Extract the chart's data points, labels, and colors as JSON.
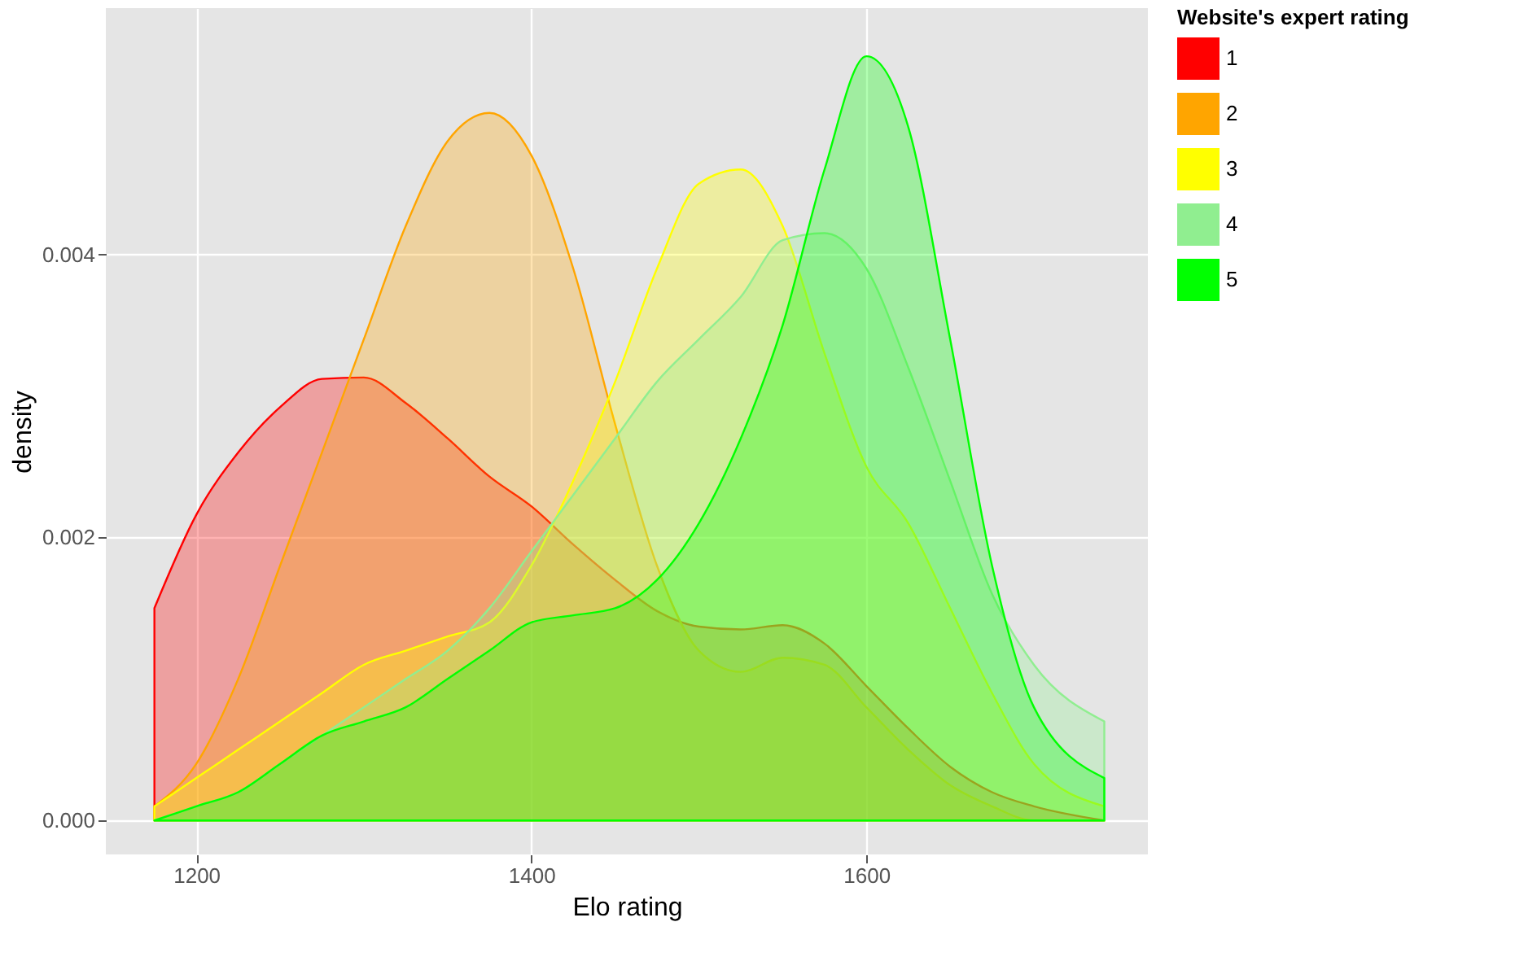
{
  "chart_data": {
    "type": "area",
    "xlabel": "Elo rating",
    "ylabel": "density",
    "legend_title": "Website's expert rating",
    "x": [
      1175,
      1200,
      1225,
      1250,
      1275,
      1300,
      1325,
      1350,
      1375,
      1400,
      1425,
      1450,
      1475,
      1500,
      1525,
      1550,
      1575,
      1600,
      1625,
      1650,
      1675,
      1700,
      1742
    ],
    "series": [
      {
        "name": "1",
        "color": "#ff0000",
        "values": [
          0.0015,
          0.00216,
          0.0026,
          0.00292,
          0.00312,
          0.00313,
          0.00295,
          0.0027,
          0.00243,
          0.00222,
          0.00195,
          0.0017,
          0.00148,
          0.00137,
          0.00135,
          0.00138,
          0.00125,
          0.00095,
          0.00065,
          0.00038,
          0.0002,
          0.0001,
          0.0
        ]
      },
      {
        "name": "2",
        "color": "#ffa500",
        "values": [
          0.0001,
          0.0004,
          0.001,
          0.0018,
          0.0026,
          0.0034,
          0.0042,
          0.0048,
          0.005,
          0.0047,
          0.0039,
          0.0028,
          0.0018,
          0.0012,
          0.00105,
          0.00115,
          0.0011,
          0.0008,
          0.0005,
          0.00025,
          0.0001,
          0.0,
          0.0
        ]
      },
      {
        "name": "3",
        "color": "#ffff00",
        "values": [
          0.0001,
          0.0003,
          0.0005,
          0.0007,
          0.0009,
          0.0011,
          0.0012,
          0.0013,
          0.0014,
          0.0018,
          0.0024,
          0.0031,
          0.0039,
          0.0045,
          0.0046,
          0.0042,
          0.0033,
          0.0025,
          0.0021,
          0.0015,
          0.0009,
          0.0004,
          0.0001
        ]
      },
      {
        "name": "4",
        "color": "#90ee90",
        "values": [
          0.0,
          0.0001,
          0.0002,
          0.0004,
          0.0006,
          0.0008,
          0.001,
          0.0012,
          0.0015,
          0.0019,
          0.0023,
          0.0027,
          0.0031,
          0.0034,
          0.0037,
          0.0041,
          0.00415,
          0.0039,
          0.0032,
          0.0024,
          0.0016,
          0.0011,
          0.0007
        ]
      },
      {
        "name": "5",
        "color": "#00ff00",
        "values": [
          0.0,
          0.0001,
          0.0002,
          0.0004,
          0.0006,
          0.0007,
          0.0008,
          0.001,
          0.0012,
          0.0014,
          0.00145,
          0.0015,
          0.0017,
          0.0021,
          0.0027,
          0.0035,
          0.0046,
          0.0054,
          0.0049,
          0.0034,
          0.0018,
          0.0008,
          0.0003
        ]
      }
    ],
    "xlim": [
      1146,
      1768
    ],
    "ylim": [
      -0.00024,
      0.00574
    ],
    "xticks": [
      1200,
      1400,
      1600
    ],
    "yticks": [
      {
        "value": 0,
        "label": "0.000"
      },
      {
        "value": 0.002,
        "label": "0.002"
      },
      {
        "value": 0.004,
        "label": "0.004"
      }
    ],
    "grid": true,
    "legend": "right"
  }
}
